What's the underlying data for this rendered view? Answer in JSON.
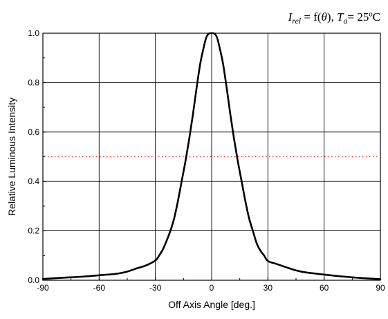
{
  "chart_data": {
    "type": "line",
    "title": {
      "sym1": "I",
      "sub1": "rel",
      "mid": " = f(",
      "theta": "θ",
      "mid2": "), ",
      "sym2": "T",
      "sub2": "a",
      "tail": "= 25ºC"
    },
    "xlabel": "Off Axis Angle [deg.]",
    "ylabel": "Relative Luminous Intensity",
    "xlim": [
      -90,
      90
    ],
    "ylim": [
      0,
      1
    ],
    "xticks": [
      -90,
      -60,
      -30,
      0,
      30,
      60,
      90
    ],
    "xtick_labels": [
      "-90",
      "-60",
      "-30",
      "0",
      "30",
      "60",
      "90"
    ],
    "yticks": [
      0,
      0.2,
      0.4,
      0.6,
      0.8,
      1.0
    ],
    "ytick_labels": [
      "0.0",
      "0.2",
      "0.4",
      "0.6",
      "0.8",
      "1.0"
    ],
    "grid": true,
    "reference_line": {
      "y": 0.5,
      "color": "#e02020",
      "style": "dotted"
    },
    "series": [
      {
        "color": "#000000",
        "x": [
          -90,
          -80,
          -70,
          -60,
          -50,
          -45,
          -40,
          -35,
          -30,
          -28,
          -26,
          -24,
          -22,
          -20,
          -18,
          -16,
          -14,
          -12,
          -10,
          -8,
          -6,
          -4,
          -3,
          -2,
          -1,
          0,
          1,
          2,
          3,
          4,
          6,
          8,
          10,
          12,
          14,
          16,
          18,
          20,
          22,
          24,
          26,
          28,
          30,
          35,
          40,
          45,
          50,
          60,
          70,
          80,
          90
        ],
        "y": [
          0.005,
          0.01,
          0.014,
          0.02,
          0.027,
          0.035,
          0.048,
          0.06,
          0.08,
          0.1,
          0.125,
          0.16,
          0.2,
          0.25,
          0.32,
          0.4,
          0.48,
          0.57,
          0.67,
          0.78,
          0.88,
          0.95,
          0.98,
          0.995,
          1.0,
          1.0,
          1.0,
          0.995,
          0.98,
          0.95,
          0.88,
          0.78,
          0.67,
          0.57,
          0.48,
          0.4,
          0.32,
          0.25,
          0.2,
          0.15,
          0.12,
          0.1,
          0.078,
          0.065,
          0.052,
          0.04,
          0.032,
          0.023,
          0.015,
          0.009,
          0.004
        ]
      }
    ]
  }
}
